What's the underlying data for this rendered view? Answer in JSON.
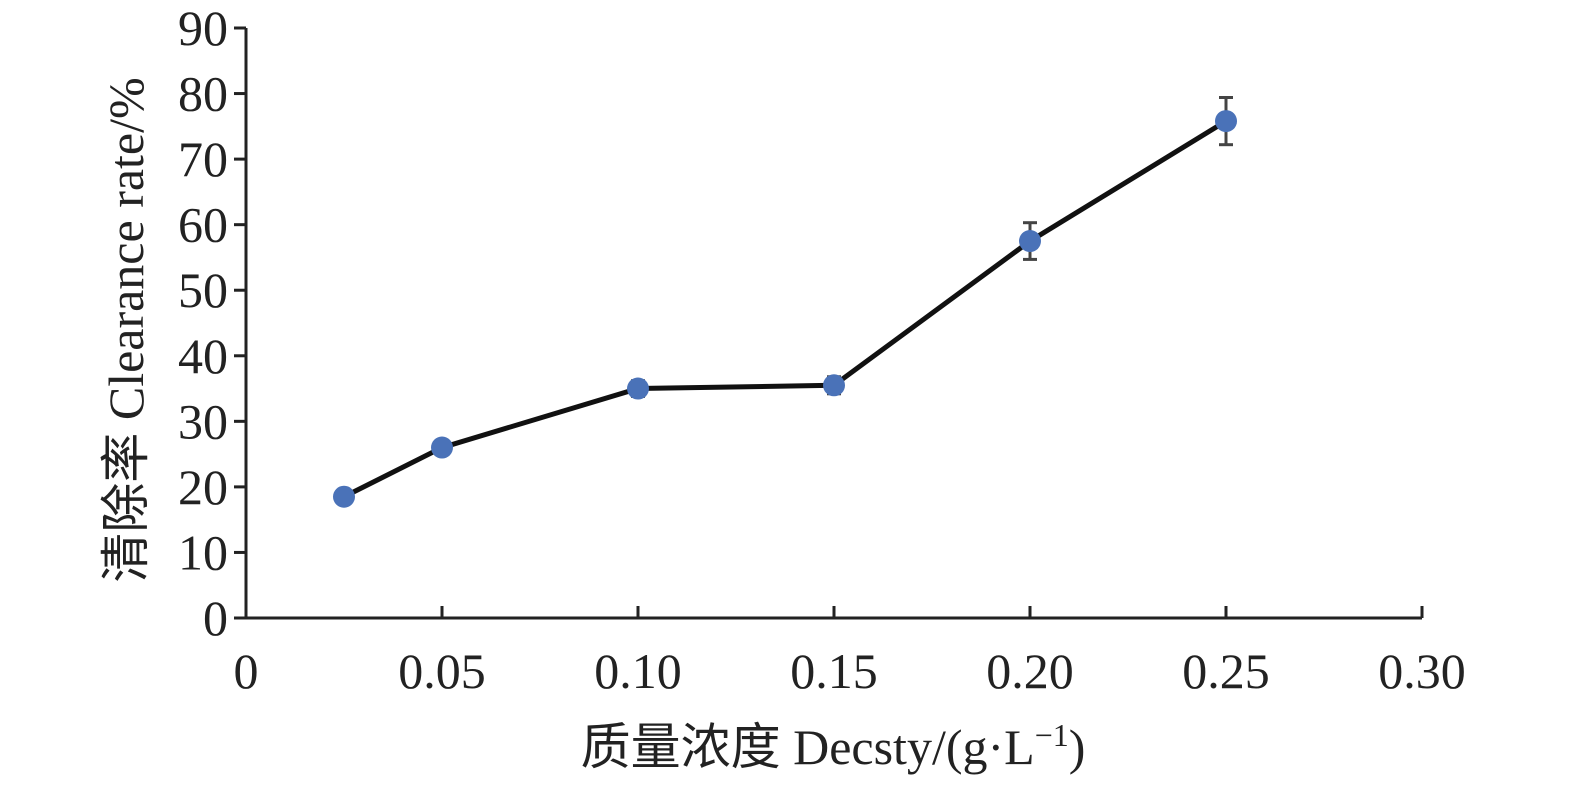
{
  "chart_data": {
    "type": "line",
    "title": "",
    "xlabel": "质量浓度 Decsty/(g·L",
    "xlabel_sup": "−1",
    "xlabel_suffix": ")",
    "ylabel": "清除率 Clearance rate/%",
    "xlim": [
      0,
      0.3
    ],
    "ylim": [
      0,
      90
    ],
    "x_ticks": [
      0,
      0.05,
      0.1,
      0.15,
      0.2,
      0.25,
      0.3
    ],
    "x_tick_labels": [
      "0",
      "0.05",
      "0.10",
      "0.15",
      "0.20",
      "0.25",
      "0.30"
    ],
    "y_ticks": [
      0,
      10,
      20,
      30,
      40,
      50,
      60,
      70,
      80,
      90
    ],
    "y_tick_labels": [
      "0",
      "10",
      "20",
      "30",
      "40",
      "50",
      "60",
      "70",
      "80",
      "90"
    ],
    "grid": false,
    "series": [
      {
        "x": [
          0.025,
          0.05,
          0.1,
          0.15,
          0.2,
          0.25
        ],
        "y": [
          18.5,
          26.0,
          35.0,
          35.5,
          57.5,
          75.8
        ],
        "error": [
          0.6,
          0.8,
          1.2,
          1.3,
          2.8,
          3.6
        ],
        "line_color": "#111111",
        "marker_color": "#4a72b8"
      }
    ]
  }
}
